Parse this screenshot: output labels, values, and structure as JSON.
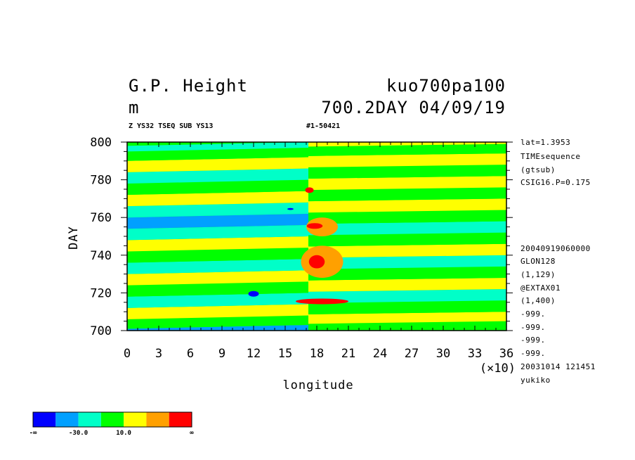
{
  "header": {
    "title_left": "G.P. Height",
    "title_right": "kuo700pa100",
    "unit": "m",
    "subtitle_right": "700.2DAY 04/09/19",
    "info_left": "Z YS32 TSEQ SUB YS13",
    "info_mid": "#1-50421"
  },
  "side_labels": [
    "lat=1.3953",
    "TIMEsequence",
    "(gtsub)",
    "CSIG16.P=0.175",
    "20040919060000",
    "GLON128",
    "(1,129)",
    "@EXTAX01",
    "(1,400)",
    "-999.",
    "-999.",
    "-999.",
    "-999.",
    "20031014 121451",
    "yukiko"
  ],
  "colorbar": {
    "colors": [
      "#0000ff",
      "#00a0ff",
      "#00ffc8",
      "#00ff00",
      "#ffff00",
      "#ffa000",
      "#ff0000"
    ],
    "labels": [
      "-∞",
      "-30.0",
      "10.0",
      "∞"
    ]
  },
  "chart_data": {
    "type": "heatmap",
    "xlabel": "longitude",
    "ylabel": "DAY",
    "x_multiplier_label": "(×10)",
    "xlim": [
      0,
      36
    ],
    "ylim": [
      700,
      800
    ],
    "x_ticks": [
      "0",
      "3",
      "6",
      "9",
      "12",
      "15",
      "18",
      "21",
      "24",
      "27",
      "30",
      "33",
      "36"
    ],
    "y_ticks": [
      "700",
      "720",
      "740",
      "760",
      "780",
      "800"
    ],
    "bands": [
      {
        "day_start": 700,
        "day_end": 703,
        "left_level": 1,
        "right_level": 3
      },
      {
        "day_start": 703,
        "day_end": 708,
        "left_level": 3,
        "right_level": 4
      },
      {
        "day_start": 708,
        "day_end": 714,
        "left_level": 4,
        "right_level": 3
      },
      {
        "day_start": 714,
        "day_end": 720,
        "left_level": 2,
        "right_level": 2
      },
      {
        "day_start": 720,
        "day_end": 726,
        "left_level": 3,
        "right_level": 4
      },
      {
        "day_start": 726,
        "day_end": 732,
        "left_level": 4,
        "right_level": 3
      },
      {
        "day_start": 732,
        "day_end": 738,
        "left_level": 2,
        "right_level": 2
      },
      {
        "day_start": 738,
        "day_end": 744,
        "left_level": 3,
        "right_level": 4
      },
      {
        "day_start": 744,
        "day_end": 750,
        "left_level": 4,
        "right_level": 3
      },
      {
        "day_start": 750,
        "day_end": 756,
        "left_level": 2,
        "right_level": 2
      },
      {
        "day_start": 756,
        "day_end": 762,
        "left_level": 1,
        "right_level": 3
      },
      {
        "day_start": 762,
        "day_end": 768,
        "left_level": 2,
        "right_level": 4
      },
      {
        "day_start": 768,
        "day_end": 774,
        "left_level": 4,
        "right_level": 3
      },
      {
        "day_start": 774,
        "day_end": 780,
        "left_level": 3,
        "right_level": 4
      },
      {
        "day_start": 780,
        "day_end": 786,
        "left_level": 2,
        "right_level": 3
      },
      {
        "day_start": 786,
        "day_end": 792,
        "left_level": 4,
        "right_level": 4
      },
      {
        "day_start": 792,
        "day_end": 797,
        "left_level": 3,
        "right_level": 3
      },
      {
        "day_start": 797,
        "day_end": 800,
        "left_level": 2,
        "right_level": 4
      }
    ],
    "features": [
      {
        "lon": 18.5,
        "day_start": 714,
        "day_end": 717,
        "lon_width": 5.0,
        "level": 6
      },
      {
        "lon": 18.0,
        "day_start": 733,
        "day_end": 740,
        "lon_width": 1.5,
        "level": 6
      },
      {
        "lon": 17.8,
        "day_start": 754,
        "day_end": 757,
        "lon_width": 1.5,
        "level": 6
      },
      {
        "lon": 17.3,
        "day_start": 773,
        "day_end": 776,
        "lon_width": 0.8,
        "level": 6
      },
      {
        "lon": 18.5,
        "day_start": 728,
        "day_end": 745,
        "lon_width": 4.0,
        "level": 5
      },
      {
        "lon": 18.5,
        "day_start": 750,
        "day_end": 760,
        "lon_width": 3.0,
        "level": 5
      },
      {
        "lon": 12.0,
        "day_start": 718,
        "day_end": 721,
        "lon_width": 1.0,
        "level": 0
      },
      {
        "lon": 15.5,
        "day_start": 764,
        "day_end": 765,
        "lon_width": 0.6,
        "level": 0
      }
    ]
  }
}
